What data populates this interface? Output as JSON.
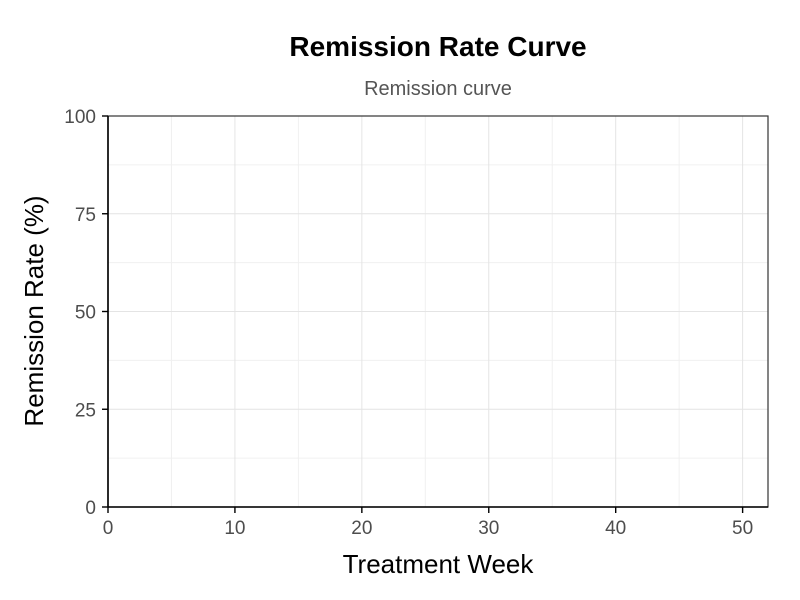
{
  "chart_data": {
    "type": "line",
    "title": "Remission Rate Curve",
    "subtitle": "Remission curve",
    "xlabel": "Treatment Week",
    "ylabel": "Remission Rate (%)",
    "xlim": [
      0,
      52
    ],
    "ylim": [
      0,
      100
    ],
    "x_ticks": [
      0,
      10,
      20,
      30,
      40,
      50
    ],
    "x_tick_labels": [
      "0",
      "10",
      "20",
      "30",
      "40",
      "50"
    ],
    "y_ticks": [
      0,
      25,
      50,
      75,
      100
    ],
    "y_tick_labels": [
      "0",
      "25",
      "50",
      "75",
      "100"
    ],
    "x_minor_ticks": [
      5,
      15,
      25,
      35,
      45
    ],
    "y_minor_ticks": [
      12.5,
      37.5,
      62.5,
      87.5
    ],
    "grid": true,
    "series": []
  }
}
